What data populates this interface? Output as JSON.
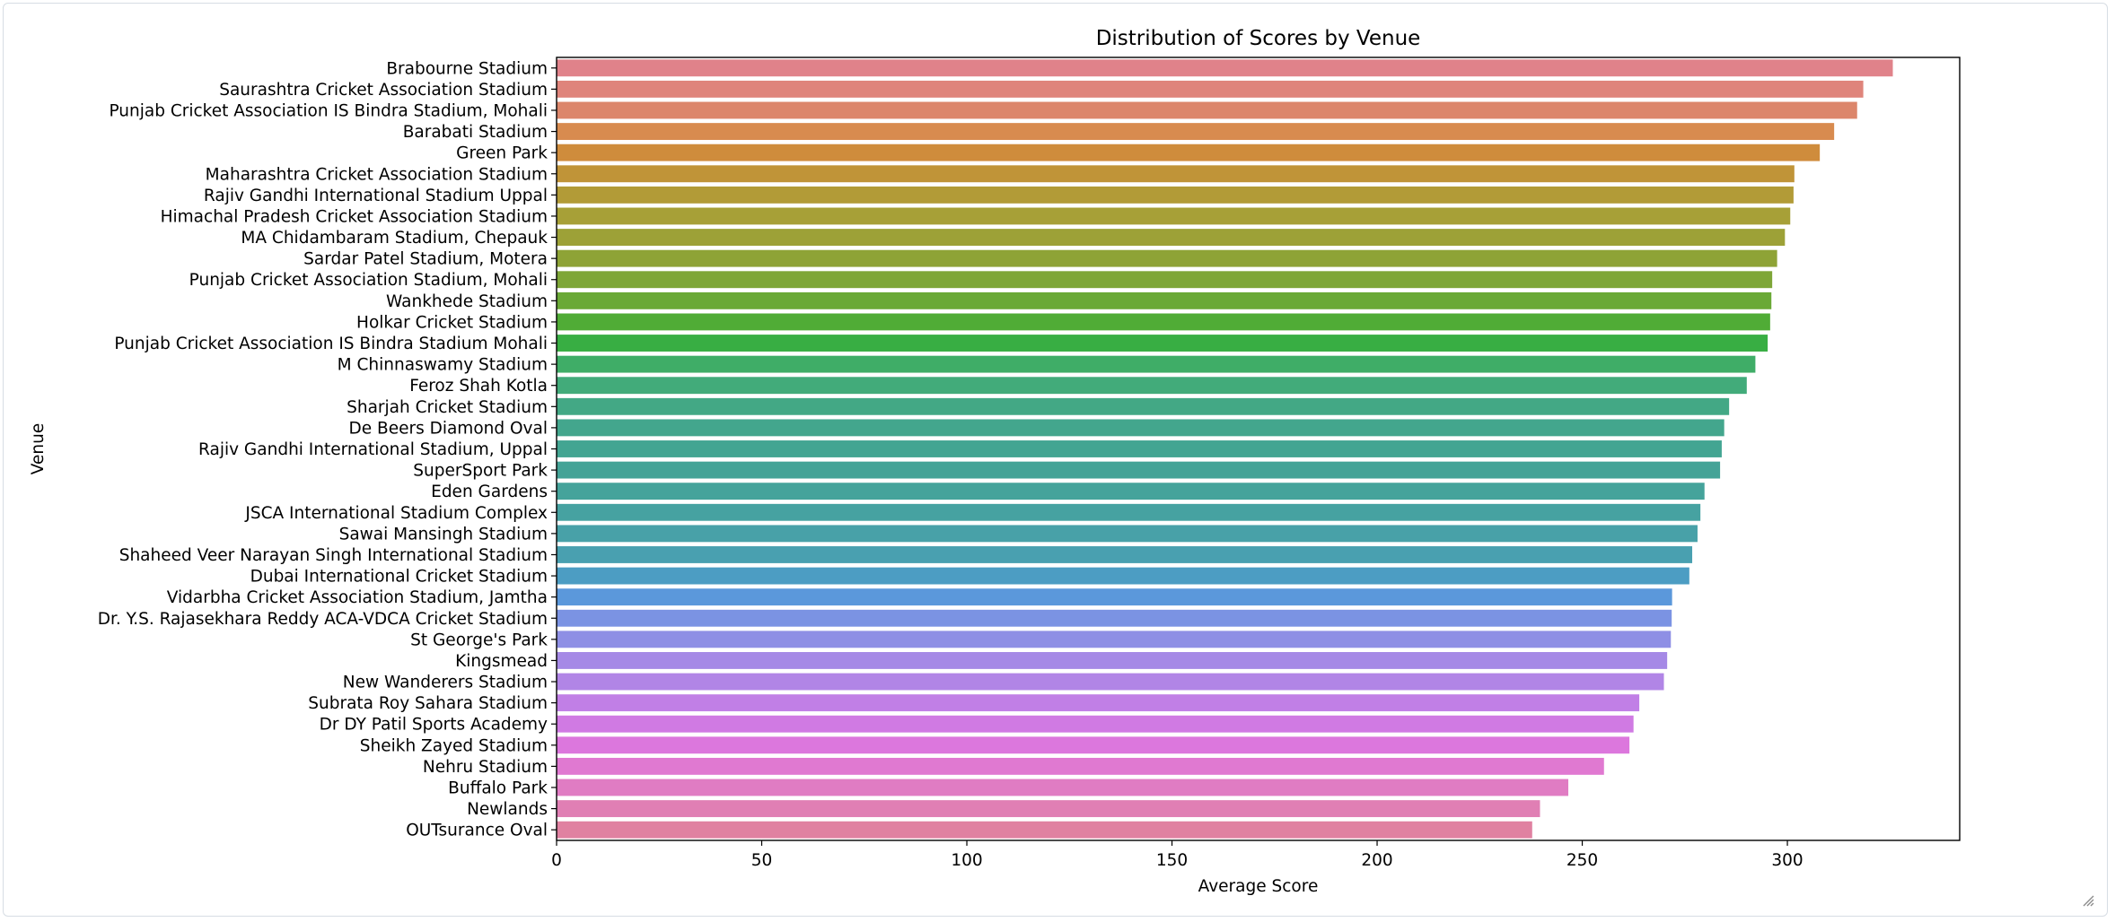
{
  "chart_data": {
    "type": "bar",
    "orientation": "horizontal",
    "title": "Distribution of Scores by Venue",
    "xlabel": "Average Score",
    "ylabel": "Venue",
    "xlim": [
      0,
      342
    ],
    "xticks": [
      0,
      50,
      100,
      150,
      200,
      250,
      300
    ],
    "grid": false,
    "legend": "none",
    "categories": [
      "Brabourne Stadium",
      "Saurashtra Cricket Association Stadium",
      "Punjab Cricket Association IS Bindra Stadium, Mohali",
      "Barabati Stadium",
      "Green Park",
      "Maharashtra Cricket Association Stadium",
      "Rajiv Gandhi International Stadium Uppal",
      "Himachal Pradesh Cricket Association Stadium",
      "MA Chidambaram Stadium, Chepauk",
      "Sardar Patel Stadium, Motera",
      "Punjab Cricket Association Stadium, Mohali",
      "Wankhede Stadium",
      "Holkar Cricket Stadium",
      "Punjab Cricket Association IS Bindra Stadium Mohali",
      "M Chinnaswamy Stadium",
      "Feroz Shah Kotla",
      "Sharjah Cricket Stadium",
      "De Beers Diamond Oval",
      "Rajiv Gandhi International Stadium, Uppal",
      "SuperSport Park",
      "Eden Gardens",
      "JSCA International Stadium Complex",
      "Sawai Mansingh Stadium",
      "Shaheed Veer Narayan Singh International Stadium",
      "Dubai International Cricket Stadium",
      "Vidarbha Cricket Association Stadium, Jamtha",
      "Dr. Y.S. Rajasekhara Reddy ACA-VDCA Cricket Stadium",
      "St George's Park",
      "Kingsmead",
      "New Wanderers Stadium",
      "Subrata Roy Sahara Stadium",
      "Dr DY Patil Sports Academy",
      "Sheikh Zayed Stadium",
      "Nehru Stadium",
      "Buffalo Park",
      "Newlands",
      "OUTsurance Oval"
    ],
    "values": [
      325.7,
      318.5,
      317.0,
      311.4,
      307.9,
      301.7,
      301.5,
      300.7,
      299.4,
      297.5,
      296.3,
      296.1,
      295.8,
      295.2,
      292.2,
      290.1,
      285.8,
      284.6,
      284.0,
      283.6,
      279.8,
      278.8,
      278.1,
      276.8,
      276.1,
      271.9,
      271.8,
      271.6,
      270.7,
      269.9,
      263.9,
      262.5,
      261.5,
      255.3,
      246.6,
      239.7,
      237.8
    ],
    "colors": [
      "#e0828a",
      "#df847b",
      "#dc866b",
      "#d88b4f",
      "#cf8c3c",
      "#c09438",
      "#b29b37",
      "#a7a037",
      "#9da137",
      "#8ea336",
      "#7ea637",
      "#6aa936",
      "#50ac36",
      "#38ae43",
      "#3fad67",
      "#42ab7a",
      "#43a885",
      "#43a68d",
      "#43a592",
      "#44a397",
      "#45a39b",
      "#46a2a1",
      "#48a1a8",
      "#49a0b0",
      "#4c9dc3",
      "#5b98db",
      "#7b93e3",
      "#8e8fe5",
      "#a589e6",
      "#b185e6",
      "#c17fe6",
      "#d07ae3",
      "#dc77dd",
      "#e079d1",
      "#e07cc3",
      "#e07fb4",
      "#e081a1"
    ]
  }
}
